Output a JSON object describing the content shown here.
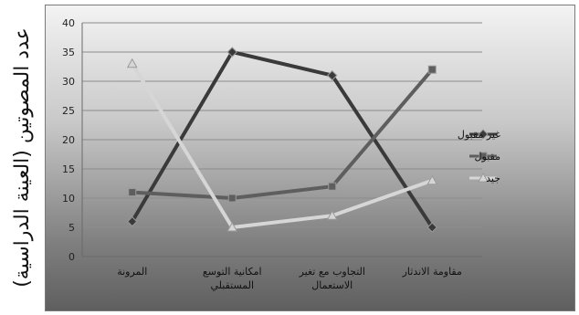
{
  "chart_data": {
    "type": "line",
    "ylabel": "عدد المصوتين (العينة الدراسية)",
    "ylim": [
      0,
      40
    ],
    "yticks": [
      "0",
      "5",
      "10",
      "15",
      "20",
      "25",
      "30",
      "35",
      "40"
    ],
    "categories": [
      "المرونة",
      "امكانية التوسع المستقبلي",
      "التجاوب مع تغير الاستعمال",
      "مقاومة الاندثار"
    ],
    "series": [
      {
        "name": "غير مقبول",
        "values": [
          6,
          35,
          31,
          5
        ],
        "color": "#3a3a3a",
        "marker": "diamond"
      },
      {
        "name": "مقبول",
        "values": [
          11,
          10,
          12,
          32
        ],
        "color": "#5e5e5e",
        "marker": "square"
      },
      {
        "name": "جيد",
        "values": [
          33,
          5,
          7,
          13
        ],
        "color": "#d6d6d6",
        "marker": "triangle"
      }
    ],
    "grid": true,
    "legend_position": "right"
  }
}
